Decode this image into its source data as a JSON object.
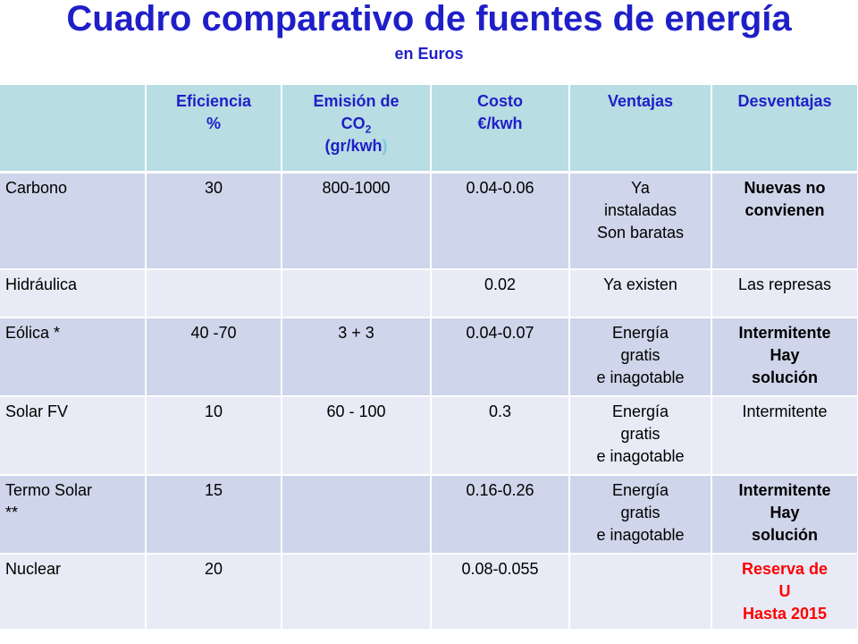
{
  "title": "Cuadro comparativo de fuentes de energía",
  "subtitle": "en Euros",
  "headers": {
    "eficiencia": [
      "Eficiencia",
      "%"
    ],
    "emision": {
      "line1": "Emisión de",
      "line2_main": "CO",
      "line2_sub": "2",
      "line3_main": "(gr/kwh",
      "line3_paren": ")"
    },
    "costo": [
      "Costo",
      "€/kwh"
    ],
    "ventajas": "Ventajas",
    "desventajas": "Desventajas"
  },
  "rows": [
    {
      "fuente": "Carbono",
      "eficiencia": "30",
      "emision": "800-1000",
      "costo": "0.04-0.06",
      "ventajas": [
        "Ya",
        "instaladas",
        "Son baratas"
      ],
      "desventajas": [
        "Nuevas no",
        "convienen"
      ],
      "desv_style": "bold"
    },
    {
      "fuente": "Hidráulica",
      "eficiencia": "",
      "emision": "",
      "costo": "0.02",
      "ventajas": [
        "Ya existen"
      ],
      "desventajas": [
        "Las represas"
      ],
      "desv_style": "normal"
    },
    {
      "fuente": "Eólica *",
      "eficiencia": "40 -70",
      "emision": "3 + 3",
      "costo": "0.04-0.07",
      "ventajas": [
        "Energía",
        "gratis",
        "e inagotable"
      ],
      "desventajas": [
        "Intermitente",
        "Hay",
        "solución"
      ],
      "desv_style": "bold"
    },
    {
      "fuente": "Solar FV",
      "eficiencia": "10",
      "emision": "60 - 100",
      "costo": "0.3",
      "ventajas": [
        "Energía",
        "gratis",
        "e inagotable"
      ],
      "desventajas": [
        "Intermitente"
      ],
      "desv_style": "normal"
    },
    {
      "fuente": [
        "Termo Solar",
        "**"
      ],
      "eficiencia": "15",
      "emision": "",
      "costo": "0.16-0.26",
      "ventajas": [
        "Energía",
        "gratis",
        "e inagotable"
      ],
      "desventajas": [
        "Intermitente",
        "Hay",
        "solución"
      ],
      "desv_style": "bold"
    },
    {
      "fuente": "Nuclear",
      "eficiencia": "20",
      "emision": "",
      "costo": "0.08-0.055",
      "ventajas": [],
      "desventajas": [
        "Reserva de",
        "U",
        "Hasta 2015"
      ],
      "desv_style": "red"
    }
  ],
  "colors": {
    "title": "#1f1fc8",
    "header_bg": "#b8dde2",
    "row_dark": "#cfd5ea",
    "row_light": "#e8ebf5",
    "red_text": "#ff0000"
  }
}
